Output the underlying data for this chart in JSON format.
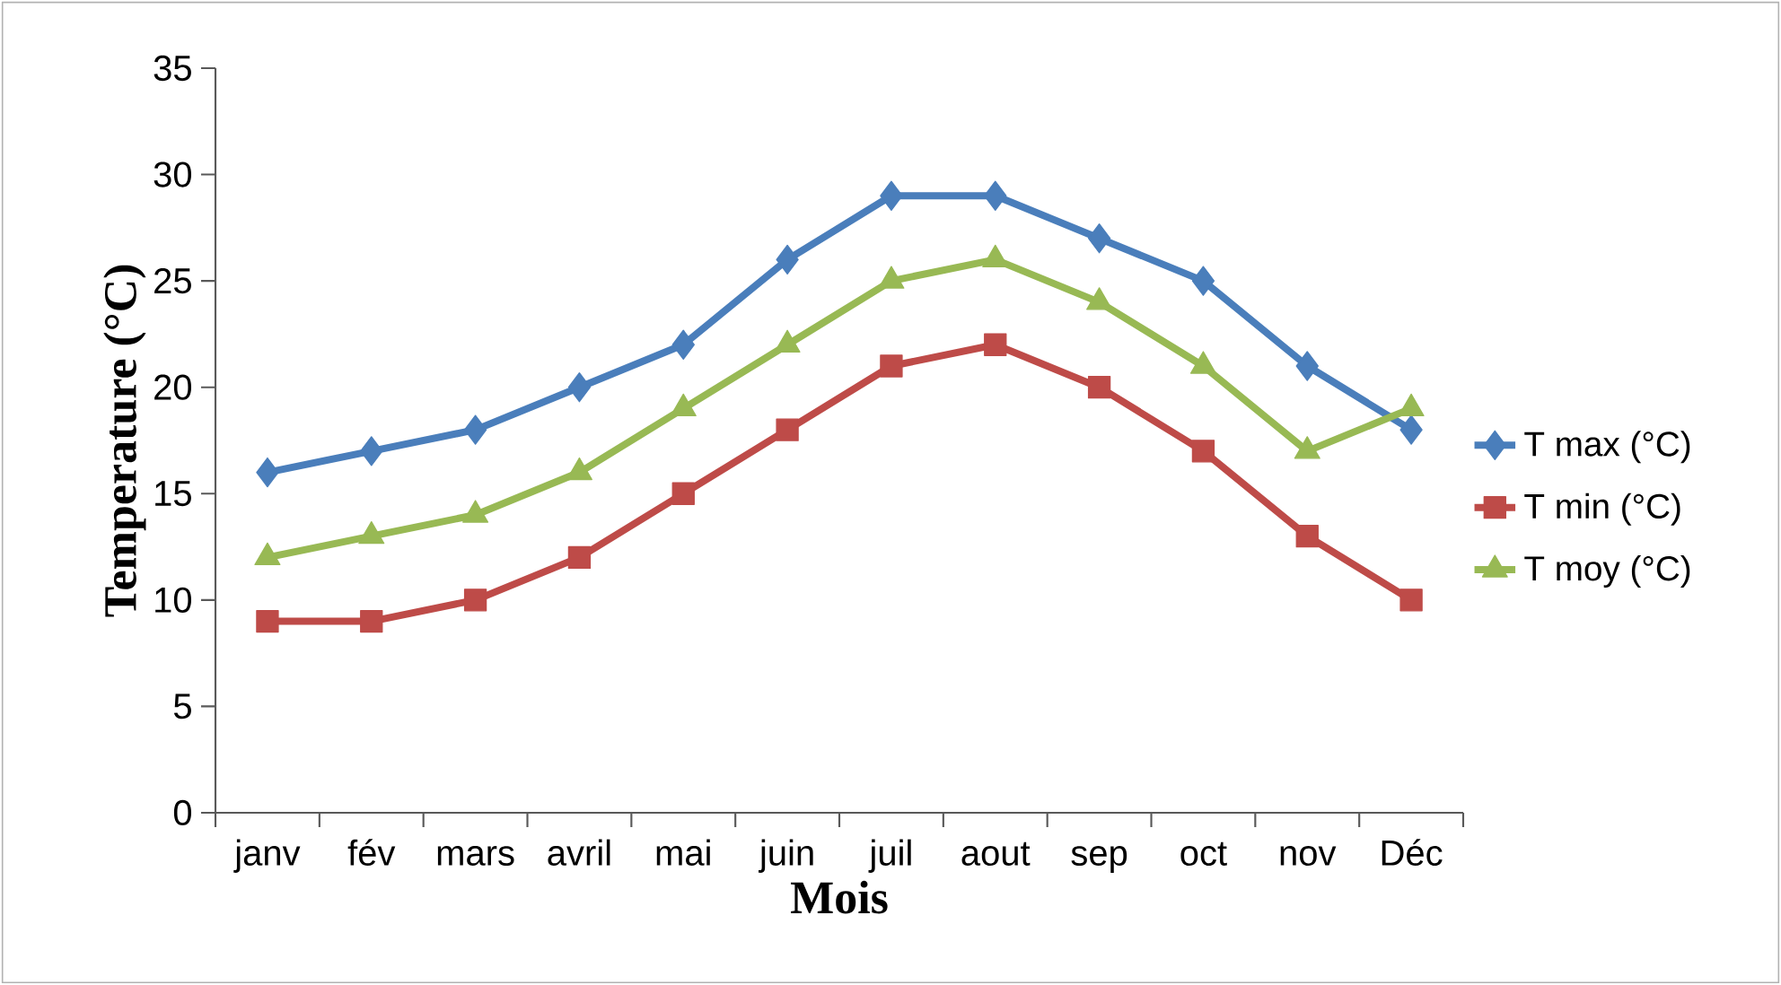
{
  "chart_data": {
    "type": "line",
    "xlabel": "Mois",
    "ylabel": "Temperature (°C)",
    "categories": [
      "janv",
      "fév",
      "mars",
      "avril",
      "mai",
      "juin",
      "juil",
      "aout",
      "sep",
      "oct",
      "nov",
      "Déc"
    ],
    "series": [
      {
        "name": "T max (°C)",
        "color": "#4a7ebb",
        "marker": "diamond",
        "values": [
          16,
          17,
          18,
          20,
          22,
          26,
          29,
          29,
          27,
          25,
          21,
          18
        ]
      },
      {
        "name": "T min (°C)",
        "color": "#be4b48",
        "marker": "square",
        "values": [
          9,
          9,
          10,
          12,
          15,
          18,
          21,
          22,
          20,
          17,
          13,
          10
        ]
      },
      {
        "name": "T moy (°C)",
        "color": "#98b954",
        "marker": "triangle",
        "values": [
          12,
          13,
          14,
          16,
          19,
          22,
          25,
          26,
          24,
          21,
          17,
          19
        ]
      }
    ],
    "ylim": [
      0,
      35
    ],
    "yticks": [
      0,
      5,
      10,
      15,
      20,
      25,
      30,
      35
    ],
    "grid": false,
    "legend": "right",
    "line_style": "solid"
  }
}
